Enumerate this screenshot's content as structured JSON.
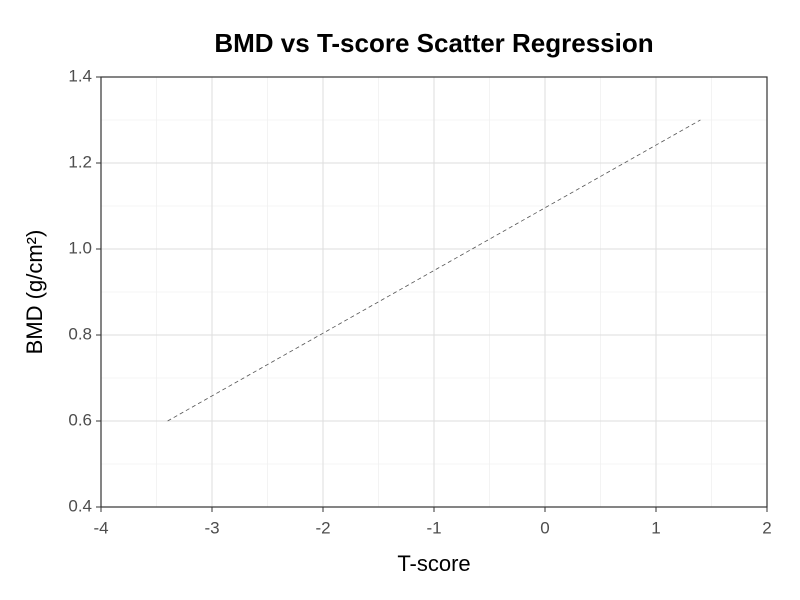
{
  "chart_data": {
    "type": "line",
    "title": "BMD vs T-score Scatter Regression",
    "x_label": "T-score",
    "y_label": "BMD (g/cm²)",
    "x": [
      -3.4,
      1.4
    ],
    "values": [
      0.6,
      1.3
    ],
    "color": "#555555",
    "dashed": true,
    "xlim": [
      -4,
      2
    ],
    "xticks": [
      -4,
      -3,
      -2,
      -1,
      0,
      1,
      2
    ],
    "ylim": [
      0.4,
      1.4
    ],
    "yticks": [
      0.4,
      0.6,
      0.8,
      {
        "value": 1.0,
        "label": "1.0"
      },
      1.2,
      1.4
    ],
    "grid": true,
    "minor_grid": true
  }
}
